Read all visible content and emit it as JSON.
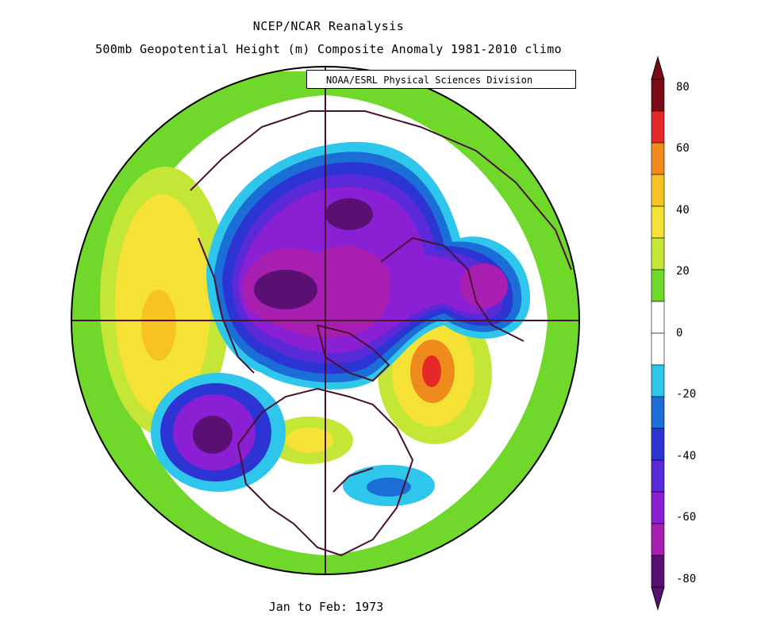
{
  "header": {
    "line1": "NCEP/NCAR Reanalysis",
    "line2": "500mb Geopotential Height (m) Composite Anomaly 1981-2010 climo",
    "credit": "NOAA/ESRL Physical Sciences Division"
  },
  "footer": {
    "period": "Jan to Feb: 1973"
  },
  "colorbar": {
    "ticks": [
      "80",
      "60",
      "40",
      "20",
      "0",
      "-20",
      "-40",
      "-60",
      "-80"
    ],
    "colors": [
      "#7a0a18",
      "#e4282a",
      "#ef8a1c",
      "#f6c320",
      "#f6e135",
      "#c4e637",
      "#6fd82a",
      "#ffffff",
      "#ffffff",
      "#2ec6ea",
      "#1a6ed6",
      "#2c34d4",
      "#5a2ad8",
      "#8a1fd4",
      "#a81eb0",
      "#5a0f72"
    ]
  }
}
